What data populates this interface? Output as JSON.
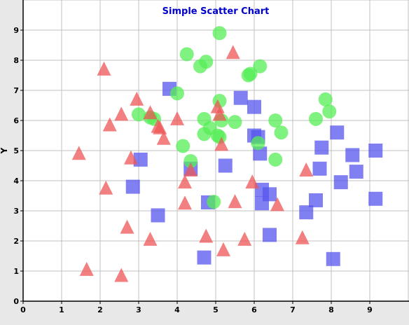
{
  "chart_data": {
    "type": "scatter",
    "title": "Simple Scatter Chart",
    "xlabel": "",
    "ylabel": "Y",
    "xlim": [
      0,
      10
    ],
    "ylim": [
      0,
      10
    ],
    "x_ticks": [
      "0",
      "1",
      "2",
      "3",
      "4",
      "5",
      "6",
      "7",
      "8",
      "9"
    ],
    "y_ticks": [
      "0",
      "1",
      "2",
      "3",
      "4",
      "5",
      "6",
      "7",
      "8",
      "9"
    ],
    "grid": true,
    "legend": "none",
    "colors": {
      "title": "#0000cc",
      "plot_background": "#ffffff",
      "page_background": "#e8e8e8",
      "grid": "#c0c0c0"
    },
    "series": [
      {
        "marker": "square",
        "color": "#5555ee",
        "points": [
          [
            3.8,
            7.05
          ],
          [
            3.05,
            4.7
          ],
          [
            2.85,
            3.8
          ],
          [
            3.5,
            2.85
          ],
          [
            4.35,
            4.4
          ],
          [
            4.7,
            1.45
          ],
          [
            4.8,
            3.28
          ],
          [
            5.25,
            4.5
          ],
          [
            5.65,
            6.75
          ],
          [
            6.0,
            6.45
          ],
          [
            6.0,
            5.5
          ],
          [
            6.1,
            5.45
          ],
          [
            6.15,
            4.9
          ],
          [
            6.2,
            3.7
          ],
          [
            6.2,
            3.25
          ],
          [
            6.4,
            3.55
          ],
          [
            6.4,
            2.2
          ],
          [
            7.35,
            2.95
          ],
          [
            7.6,
            3.35
          ],
          [
            7.7,
            4.4
          ],
          [
            7.75,
            5.1
          ],
          [
            8.05,
            1.4
          ],
          [
            8.15,
            5.6
          ],
          [
            8.25,
            3.95
          ],
          [
            8.55,
            4.85
          ],
          [
            8.65,
            4.3
          ],
          [
            9.15,
            5.0
          ],
          [
            9.15,
            3.4
          ]
        ]
      },
      {
        "marker": "circle",
        "color": "#55ee55",
        "points": [
          [
            5.1,
            8.9
          ],
          [
            4.25,
            8.2
          ],
          [
            4.6,
            7.8
          ],
          [
            4.75,
            7.95
          ],
          [
            4.0,
            6.9
          ],
          [
            3.0,
            6.2
          ],
          [
            3.3,
            6.1
          ],
          [
            3.4,
            6.05
          ],
          [
            5.1,
            6.65
          ],
          [
            5.85,
            7.5
          ],
          [
            5.9,
            7.55
          ],
          [
            6.15,
            7.8
          ],
          [
            4.7,
            6.05
          ],
          [
            4.7,
            5.55
          ],
          [
            4.85,
            5.75
          ],
          [
            5.05,
            5.5
          ],
          [
            5.1,
            5.45
          ],
          [
            5.15,
            6.0
          ],
          [
            5.5,
            5.95
          ],
          [
            6.1,
            5.25
          ],
          [
            6.55,
            6.0
          ],
          [
            6.7,
            5.6
          ],
          [
            4.15,
            5.15
          ],
          [
            4.35,
            4.65
          ],
          [
            6.55,
            4.7
          ],
          [
            4.95,
            3.3
          ],
          [
            7.6,
            6.05
          ],
          [
            7.85,
            6.7
          ],
          [
            7.95,
            6.3
          ]
        ]
      },
      {
        "marker": "triangle",
        "color": "#ee5555",
        "points": [
          [
            2.1,
            7.7
          ],
          [
            2.95,
            6.7
          ],
          [
            3.3,
            6.25
          ],
          [
            2.55,
            6.2
          ],
          [
            2.25,
            5.85
          ],
          [
            3.5,
            5.8
          ],
          [
            3.55,
            5.75
          ],
          [
            3.65,
            5.4
          ],
          [
            4.0,
            6.05
          ],
          [
            5.45,
            8.25
          ],
          [
            5.05,
            6.45
          ],
          [
            5.1,
            6.2
          ],
          [
            5.15,
            5.2
          ],
          [
            1.45,
            4.9
          ],
          [
            2.8,
            4.75
          ],
          [
            4.35,
            4.35
          ],
          [
            4.2,
            3.95
          ],
          [
            2.15,
            3.75
          ],
          [
            4.2,
            3.25
          ],
          [
            5.5,
            3.3
          ],
          [
            5.95,
            3.95
          ],
          [
            6.6,
            3.2
          ],
          [
            7.35,
            4.35
          ],
          [
            2.7,
            2.45
          ],
          [
            3.3,
            2.05
          ],
          [
            4.75,
            2.15
          ],
          [
            5.2,
            1.7
          ],
          [
            5.75,
            2.05
          ],
          [
            7.25,
            2.1
          ],
          [
            1.65,
            1.05
          ],
          [
            2.55,
            0.85
          ]
        ]
      }
    ]
  }
}
